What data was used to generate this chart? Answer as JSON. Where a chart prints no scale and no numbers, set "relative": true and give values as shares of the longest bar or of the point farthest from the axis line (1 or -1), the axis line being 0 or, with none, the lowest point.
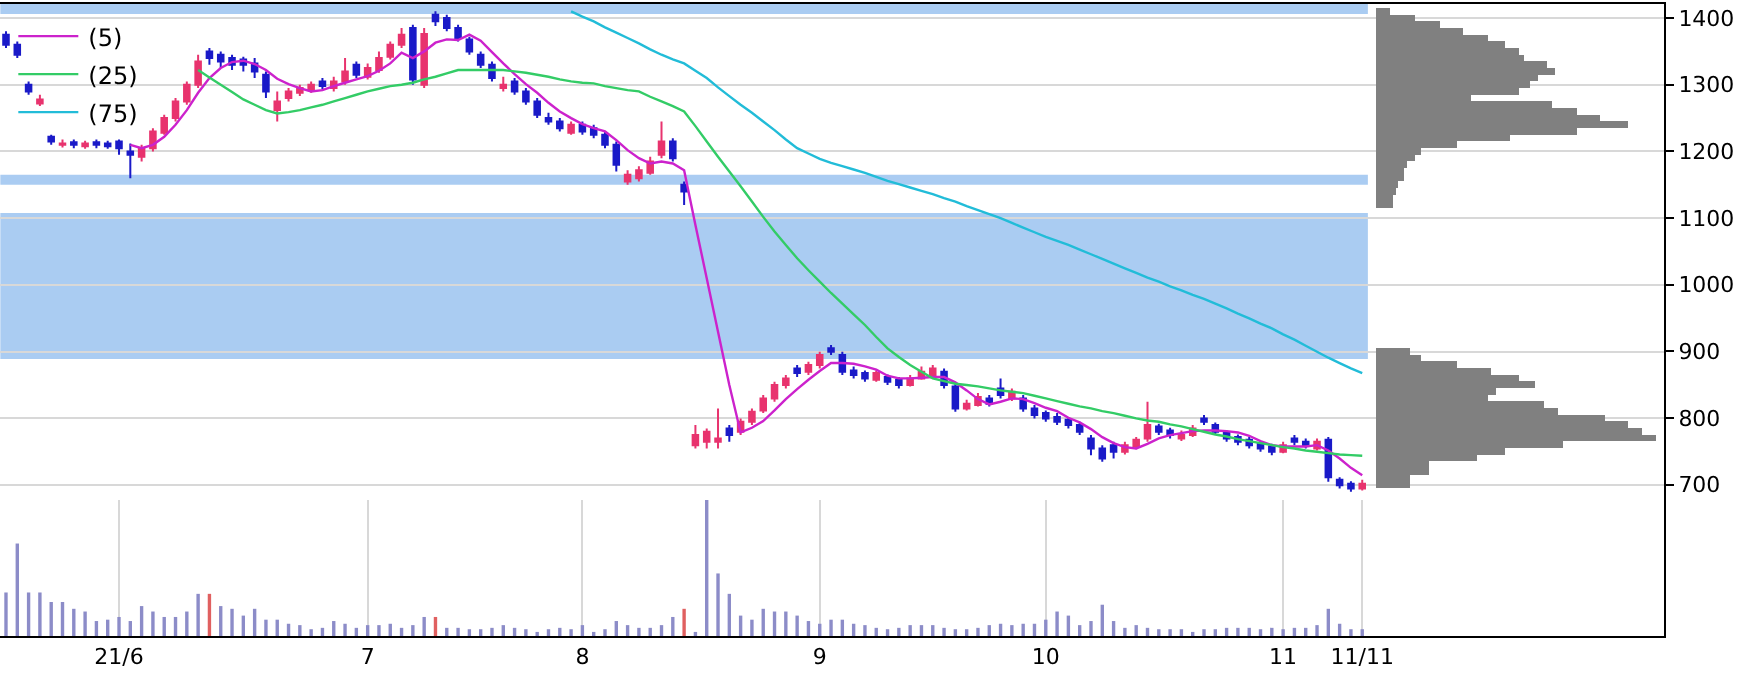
{
  "chart_data": [
    {
      "type": "candlestick",
      "tick_labels": false,
      "categories": [
        null,
        null,
        null,
        null,
        null,
        null,
        null,
        null,
        null,
        null,
        null,
        null,
        null,
        null,
        null,
        null,
        null,
        null,
        null,
        null,
        null,
        null,
        null,
        null,
        null,
        null,
        null,
        null,
        null,
        null,
        null,
        null,
        null,
        null,
        null,
        null,
        null,
        null,
        null,
        null,
        null,
        null,
        null,
        null,
        null,
        null,
        null,
        null,
        null,
        null,
        null,
        null,
        null,
        null,
        null,
        null,
        null,
        null,
        null,
        null,
        null,
        null,
        null,
        null,
        null,
        null,
        null,
        null,
        null,
        null,
        null,
        null,
        null,
        null,
        null,
        null,
        null,
        null,
        null,
        null,
        null,
        null,
        null,
        null,
        null,
        null,
        null,
        null,
        null,
        null,
        null,
        null,
        null,
        null,
        null,
        null,
        null,
        null,
        null,
        null,
        null,
        null,
        null,
        null,
        null,
        null,
        null,
        null,
        null,
        null,
        null,
        null,
        null,
        null,
        null,
        null,
        null,
        null,
        null,
        null,
        null
      ],
      "ohlc": [
        [
          1375,
          1380,
          1355,
          1360
        ],
        [
          1360,
          1365,
          1340,
          1345
        ],
        [
          1300,
          1305,
          1285,
          1290
        ],
        [
          1272,
          1285,
          1268,
          1278
        ],
        [
          1222,
          1225,
          1210,
          1215
        ],
        [
          1210,
          1218,
          1206,
          1212
        ],
        [
          1214,
          1218,
          1205,
          1210
        ],
        [
          1208,
          1216,
          1204,
          1212
        ],
        [
          1214,
          1218,
          1205,
          1210
        ],
        [
          1212,
          1216,
          1204,
          1208
        ],
        [
          1215,
          1218,
          1195,
          1205
        ],
        [
          1200,
          1212,
          1160,
          1195
        ],
        [
          1192,
          1210,
          1185,
          1205
        ],
        [
          1205,
          1235,
          1200,
          1230
        ],
        [
          1228,
          1255,
          1225,
          1250
        ],
        [
          1250,
          1280,
          1245,
          1275
        ],
        [
          1275,
          1305,
          1270,
          1300
        ],
        [
          1300,
          1345,
          1295,
          1335
        ],
        [
          1350,
          1355,
          1330,
          1340
        ],
        [
          1345,
          1350,
          1325,
          1335
        ],
        [
          1340,
          1345,
          1322,
          1330
        ],
        [
          1338,
          1342,
          1320,
          1330
        ],
        [
          1332,
          1340,
          1310,
          1320
        ],
        [
          1315,
          1320,
          1280,
          1290
        ],
        [
          1262,
          1290,
          1245,
          1275
        ],
        [
          1280,
          1295,
          1275,
          1290
        ],
        [
          1288,
          1300,
          1283,
          1295
        ],
        [
          1292,
          1305,
          1288,
          1300
        ],
        [
          1305,
          1310,
          1293,
          1298
        ],
        [
          1295,
          1312,
          1290,
          1305
        ],
        [
          1305,
          1340,
          1300,
          1320
        ],
        [
          1330,
          1335,
          1310,
          1315
        ],
        [
          1312,
          1332,
          1308,
          1325
        ],
        [
          1322,
          1350,
          1318,
          1340
        ],
        [
          1342,
          1365,
          1338,
          1360
        ],
        [
          1360,
          1385,
          1355,
          1375
        ],
        [
          1385,
          1390,
          1300,
          1308
        ],
        [
          1300,
          1385,
          1295,
          1376
        ],
        [
          1405,
          1410,
          1388,
          1395
        ],
        [
          1400,
          1405,
          1380,
          1385
        ],
        [
          1385,
          1390,
          1365,
          1370
        ],
        [
          1368,
          1372,
          1345,
          1350
        ],
        [
          1345,
          1350,
          1325,
          1330
        ],
        [
          1330,
          1335,
          1305,
          1310
        ],
        [
          1295,
          1312,
          1290,
          1300
        ],
        [
          1305,
          1310,
          1285,
          1290
        ],
        [
          1290,
          1295,
          1270,
          1275
        ],
        [
          1275,
          1280,
          1250,
          1255
        ],
        [
          1250,
          1258,
          1240,
          1245
        ],
        [
          1245,
          1250,
          1230,
          1235
        ],
        [
          1228,
          1245,
          1225,
          1240
        ],
        [
          1240,
          1245,
          1225,
          1230
        ],
        [
          1235,
          1240,
          1220,
          1225
        ],
        [
          1225,
          1230,
          1205,
          1210
        ],
        [
          1210,
          1215,
          1170,
          1180
        ],
        [
          1155,
          1172,
          1150,
          1165
        ],
        [
          1160,
          1178,
          1155,
          1172
        ],
        [
          1168,
          1192,
          1165,
          1185
        ],
        [
          1195,
          1245,
          1190,
          1215
        ],
        [
          1215,
          1220,
          1185,
          1190
        ],
        [
          1150,
          1155,
          1120,
          1140
        ],
        [
          760,
          790,
          755,
          775
        ],
        [
          765,
          785,
          755,
          780
        ],
        [
          765,
          815,
          755,
          770
        ],
        [
          785,
          790,
          765,
          775
        ],
        [
          780,
          800,
          775,
          795
        ],
        [
          795,
          815,
          790,
          810
        ],
        [
          812,
          835,
          808,
          830
        ],
        [
          830,
          855,
          825,
          850
        ],
        [
          850,
          865,
          845,
          860
        ],
        [
          875,
          880,
          862,
          868
        ],
        [
          870,
          885,
          865,
          880
        ],
        [
          880,
          900,
          875,
          895
        ],
        [
          905,
          910,
          895,
          900
        ],
        [
          895,
          900,
          865,
          870
        ],
        [
          872,
          878,
          860,
          865
        ],
        [
          868,
          872,
          855,
          860
        ],
        [
          858,
          872,
          855,
          868
        ],
        [
          862,
          866,
          850,
          855
        ],
        [
          858,
          862,
          845,
          850
        ],
        [
          850,
          865,
          848,
          860
        ],
        [
          860,
          878,
          858,
          870
        ],
        [
          865,
          880,
          862,
          875
        ],
        [
          870,
          875,
          845,
          850
        ],
        [
          848,
          852,
          810,
          815
        ],
        [
          815,
          828,
          812,
          822
        ],
        [
          820,
          838,
          818,
          832
        ],
        [
          830,
          835,
          818,
          822
        ],
        [
          845,
          860,
          830,
          835
        ],
        [
          830,
          845,
          826,
          840
        ],
        [
          830,
          835,
          810,
          815
        ],
        [
          815,
          820,
          800,
          805
        ],
        [
          808,
          812,
          795,
          800
        ],
        [
          802,
          808,
          790,
          795
        ],
        [
          798,
          802,
          785,
          790
        ],
        [
          790,
          795,
          775,
          780
        ],
        [
          770,
          775,
          745,
          755
        ],
        [
          755,
          760,
          735,
          740
        ],
        [
          760,
          765,
          740,
          750
        ],
        [
          750,
          765,
          746,
          760
        ],
        [
          758,
          772,
          754,
          768
        ],
        [
          770,
          825,
          765,
          790
        ],
        [
          788,
          792,
          775,
          780
        ],
        [
          782,
          786,
          770,
          775
        ],
        [
          770,
          782,
          766,
          775
        ],
        [
          775,
          790,
          772,
          785
        ],
        [
          800,
          805,
          790,
          795
        ],
        [
          790,
          794,
          775,
          780
        ],
        [
          778,
          782,
          765,
          770
        ],
        [
          772,
          776,
          760,
          765
        ],
        [
          768,
          772,
          755,
          760
        ],
        [
          762,
          766,
          750,
          755
        ],
        [
          758,
          762,
          745,
          750
        ],
        [
          750,
          765,
          748,
          760
        ],
        [
          770,
          775,
          760,
          765
        ],
        [
          765,
          770,
          755,
          760
        ],
        [
          755,
          770,
          752,
          765
        ],
        [
          768,
          772,
          705,
          712
        ],
        [
          708,
          712,
          695,
          700
        ],
        [
          702,
          706,
          690,
          695
        ],
        [
          695,
          708,
          692,
          702
        ]
      ],
      "colors": [
        "#1a1ac8",
        "#1a1ac8",
        "#1a1ac8",
        "#e8336e",
        "#1a1ac8",
        "#e8336e",
        "#1a1ac8",
        "#e8336e",
        "#1a1ac8",
        "#1a1ac8",
        "#1a1ac8",
        "#1a1ac8",
        "#e8336e",
        "#e8336e",
        "#e8336e",
        "#e8336e",
        "#e8336e",
        "#e8336e",
        "#1a1ac8",
        "#1a1ac8",
        "#1a1ac8",
        "#1a1ac8",
        "#1a1ac8",
        "#1a1ac8",
        "#e8336e",
        "#e8336e",
        "#e8336e",
        "#e8336e",
        "#1a1ac8",
        "#e8336e",
        "#e8336e",
        "#1a1ac8",
        "#e8336e",
        "#e8336e",
        "#e8336e",
        "#e8336e",
        "#1a1ac8",
        "#e8336e",
        "#1a1ac8",
        "#1a1ac8",
        "#1a1ac8",
        "#1a1ac8",
        "#1a1ac8",
        "#1a1ac8",
        "#e8336e",
        "#1a1ac8",
        "#1a1ac8",
        "#1a1ac8",
        "#1a1ac8",
        "#1a1ac8",
        "#e8336e",
        "#1a1ac8",
        "#1a1ac8",
        "#1a1ac8",
        "#1a1ac8",
        "#e8336e",
        "#e8336e",
        "#e8336e",
        "#e8336e",
        "#1a1ac8",
        "#1a1ac8",
        "#e8336e",
        "#e8336e",
        "#e8336e",
        "#1a1ac8",
        "#e8336e",
        "#e8336e",
        "#e8336e",
        "#e8336e",
        "#e8336e",
        "#1a1ac8",
        "#e8336e",
        "#e8336e",
        "#1a1ac8",
        "#1a1ac8",
        "#1a1ac8",
        "#1a1ac8",
        "#e8336e",
        "#1a1ac8",
        "#1a1ac8",
        "#e8336e",
        "#e8336e",
        "#e8336e",
        "#1a1ac8",
        "#1a1ac8",
        "#e8336e",
        "#e8336e",
        "#1a1ac8",
        "#1a1ac8",
        "#e8336e",
        "#1a1ac8",
        "#1a1ac8",
        "#1a1ac8",
        "#1a1ac8",
        "#1a1ac8",
        "#1a1ac8",
        "#1a1ac8",
        "#1a1ac8",
        "#1a1ac8",
        "#e8336e",
        "#e8336e",
        "#e8336e",
        "#1a1ac8",
        "#1a1ac8",
        "#e8336e",
        "#e8336e",
        "#1a1ac8",
        "#1a1ac8",
        "#1a1ac8",
        "#1a1ac8",
        "#1a1ac8",
        "#1a1ac8",
        "#1a1ac8",
        "#e8336e",
        "#1a1ac8",
        "#1a1ac8",
        "#e8336e",
        "#1a1ac8",
        "#1a1ac8",
        "#1a1ac8",
        "#e8336e"
      ],
      "series": [
        {
          "type": "line",
          "name": "(5)",
          "color": "#cc22cc",
          "values": [
            null,
            null,
            null,
            null,
            null,
            null,
            null,
            null,
            null,
            null,
            null,
            1210,
            1205,
            1210,
            1222,
            1240,
            1262,
            1288,
            1310,
            1325,
            1334,
            1336,
            1331,
            1322,
            1309,
            1301,
            1295,
            1290,
            1292,
            1298,
            1303,
            1308,
            1313,
            1321,
            1332,
            1348,
            1340,
            1350,
            1363,
            1368,
            1367,
            1375,
            1366,
            1349,
            1332,
            1316,
            1301,
            1288,
            1273,
            1260,
            1250,
            1241,
            1235,
            1230,
            1217,
            1202,
            1190,
            1182,
            1185,
            1182,
            1172,
            1090,
            1010,
            930,
            850,
            779,
            786,
            796,
            812,
            829,
            844,
            858,
            871,
            883,
            883,
            882,
            878,
            873,
            864,
            860,
            860,
            861,
            862,
            862,
            854,
            842,
            829,
            821,
            825,
            830,
            829,
            823,
            816,
            811,
            801,
            794,
            784,
            772,
            763,
            757,
            755,
            762,
            770,
            775,
            778,
            781,
            782,
            782,
            781,
            779,
            774,
            766,
            760,
            758,
            758,
            758,
            760,
            752,
            740,
            726,
            715
          ]
        },
        {
          "type": "line",
          "name": "(25)",
          "color": "#33cc66",
          "values": [
            null,
            null,
            null,
            null,
            null,
            null,
            null,
            null,
            null,
            null,
            null,
            null,
            null,
            null,
            null,
            null,
            null,
            1322,
            1311,
            1300,
            1289,
            1278,
            1270,
            1262,
            1257,
            1259,
            1262,
            1266,
            1270,
            1275,
            1280,
            1285,
            1290,
            1294,
            1298,
            1300,
            1303,
            1308,
            1312,
            1317,
            1322,
            1322,
            1322,
            1322,
            1322,
            1320,
            1318,
            1315,
            1312,
            1308,
            1305,
            1303,
            1302,
            1298,
            1295,
            1292,
            1290,
            1282,
            1275,
            1268,
            1260,
            1238,
            1215,
            1192,
            1170,
            1148,
            1125,
            1102,
            1080,
            1060,
            1040,
            1022,
            1005,
            988,
            972,
            956,
            940,
            922,
            905,
            892,
            880,
            870,
            860,
            856,
            852,
            850,
            848,
            845,
            842,
            840,
            838,
            834,
            830,
            826,
            822,
            818,
            815,
            811,
            808,
            804,
            800,
            797,
            795,
            791,
            788,
            784,
            780,
            776,
            773,
            769,
            766,
            763,
            760,
            757,
            755,
            752,
            750,
            748,
            746,
            745,
            744
          ]
        },
        {
          "type": "line",
          "name": "(75)",
          "color": "#22bcd8",
          "values": [
            null,
            null,
            null,
            null,
            null,
            null,
            null,
            null,
            null,
            null,
            null,
            null,
            null,
            null,
            null,
            null,
            null,
            null,
            null,
            null,
            null,
            null,
            null,
            null,
            null,
            null,
            null,
            null,
            null,
            null,
            null,
            null,
            null,
            null,
            null,
            null,
            null,
            null,
            null,
            null,
            null,
            null,
            null,
            null,
            null,
            null,
            null,
            null,
            null,
            null,
            1410,
            1402,
            1395,
            1386,
            1378,
            1370,
            1362,
            1353,
            1345,
            1338,
            1332,
            1321,
            1310,
            1296,
            1283,
            1270,
            1258,
            1245,
            1232,
            1218,
            1205,
            1197,
            1189,
            1183,
            1178,
            1173,
            1168,
            1162,
            1156,
            1151,
            1146,
            1141,
            1136,
            1130,
            1125,
            1118,
            1112,
            1106,
            1100,
            1093,
            1086,
            1079,
            1072,
            1066,
            1060,
            1053,
            1046,
            1039,
            1032,
            1025,
            1018,
            1011,
            1005,
            998,
            992,
            985,
            979,
            972,
            965,
            957,
            950,
            942,
            935,
            926,
            918,
            909,
            900,
            891,
            883,
            875,
            868
          ]
        }
      ],
      "ylim": [
        474,
        1421
      ],
      "yticks": [
        700,
        800,
        900,
        1000,
        1100,
        1200,
        1300,
        1400
      ],
      "bands": [
        {
          "axis": "y",
          "from": 1406,
          "to": 1421,
          "color": "#aaccf2"
        },
        {
          "axis": "y",
          "from": 1150,
          "to": 1165,
          "color": "#aaccf2"
        },
        {
          "axis": "y",
          "from": 889,
          "to": 1108,
          "color": "#aaccf2"
        }
      ],
      "grid": "y",
      "legend": "top left"
    },
    {
      "type": "bar",
      "relative": true,
      "tick_labels": "x",
      "grid": "x",
      "categories": [
        null,
        null,
        null,
        null,
        null,
        null,
        null,
        null,
        null,
        null,
        "21/6",
        null,
        null,
        null,
        null,
        null,
        null,
        null,
        null,
        null,
        null,
        null,
        null,
        null,
        null,
        null,
        null,
        null,
        null,
        null,
        null,
        null,
        "7",
        null,
        null,
        null,
        null,
        null,
        null,
        null,
        null,
        null,
        null,
        null,
        null,
        null,
        null,
        null,
        null,
        null,
        null,
        "8",
        null,
        null,
        null,
        null,
        null,
        null,
        null,
        null,
        null,
        null,
        null,
        null,
        null,
        null,
        null,
        null,
        null,
        null,
        null,
        null,
        "9",
        null,
        null,
        null,
        null,
        null,
        null,
        null,
        null,
        null,
        null,
        null,
        null,
        null,
        null,
        null,
        null,
        null,
        null,
        null,
        "10",
        null,
        null,
        null,
        null,
        null,
        null,
        null,
        null,
        null,
        null,
        null,
        null,
        null,
        null,
        null,
        null,
        null,
        null,
        null,
        null,
        "11",
        null,
        null,
        null,
        null,
        null,
        null,
        "11/11"
      ],
      "series": [
        {
          "color": "#8c8cc8",
          "values": [
            0.32,
            0.68,
            0.32,
            0.32,
            0.25,
            0.25,
            0.2,
            0.18,
            0.11,
            0.12,
            0.14,
            0.11,
            0.22,
            0.18,
            0.14,
            0.14,
            0.18,
            0.31,
            null,
            0.22,
            0.2,
            0.15,
            0.2,
            0.12,
            0.12,
            0.09,
            0.08,
            0.05,
            0.06,
            0.11,
            0.09,
            0.06,
            0.08,
            0.08,
            0.09,
            0.06,
            0.08,
            0.14,
            null,
            0.06,
            0.06,
            0.05,
            0.05,
            0.06,
            0.08,
            0.06,
            0.05,
            0.03,
            0.05,
            0.06,
            0.05,
            0.08,
            0.03,
            0.05,
            0.11,
            0.08,
            0.06,
            0.06,
            0.08,
            0.14,
            null,
            0.03,
            1,
            0.46,
            0.31,
            0.15,
            0.12,
            0.2,
            0.18,
            0.18,
            0.15,
            0.11,
            0.09,
            0.12,
            0.12,
            0.09,
            0.08,
            0.06,
            0.05,
            0.06,
            0.08,
            0.08,
            0.08,
            0.06,
            0.05,
            0.05,
            0.06,
            0.08,
            0.09,
            0.08,
            0.09,
            0.09,
            0.12,
            0.18,
            0.15,
            0.08,
            0.11,
            0.23,
            0.11,
            0.06,
            0.08,
            0.06,
            0.05,
            0.05,
            0.05,
            0.03,
            0.05,
            0.05,
            0.06,
            0.06,
            0.06,
            0.05,
            0.06,
            0.05,
            0.06,
            0.06,
            0.08,
            0.2,
            0.09,
            0.05,
            0.05
          ]
        },
        {
          "color": "#e06060",
          "values": [
            null,
            null,
            null,
            null,
            null,
            null,
            null,
            null,
            null,
            null,
            null,
            null,
            null,
            null,
            null,
            null,
            null,
            null,
            0.31,
            null,
            null,
            null,
            null,
            null,
            null,
            null,
            null,
            null,
            null,
            null,
            null,
            null,
            null,
            null,
            null,
            null,
            null,
            null,
            0.14,
            null,
            null,
            null,
            null,
            null,
            null,
            null,
            null,
            null,
            null,
            null,
            null,
            null,
            null,
            null,
            null,
            null,
            null,
            null,
            null,
            null,
            0.2,
            null,
            null,
            null,
            null,
            null,
            null,
            null,
            null,
            null,
            null,
            null,
            null,
            null,
            null,
            null,
            null,
            null,
            null,
            null,
            null,
            null,
            null,
            null,
            null,
            null,
            null,
            null,
            null,
            null,
            null,
            null,
            null,
            null,
            null,
            null,
            null,
            null,
            null,
            null,
            null,
            null,
            null,
            null,
            null,
            null,
            null,
            null,
            null,
            null,
            null,
            null,
            null,
            null,
            null,
            null,
            null,
            null,
            null,
            null,
            null
          ]
        }
      ]
    },
    {
      "type": "bar",
      "orientation": "horizontal",
      "relative": true,
      "tick_labels": "y",
      "color": "#808080",
      "categories": [
        null,
        "1400",
        null,
        null,
        null,
        null,
        null,
        null,
        null,
        null,
        null,
        "1300",
        null,
        null,
        null,
        null,
        null,
        null,
        null,
        null,
        null,
        "1200",
        null,
        null,
        null,
        null,
        null,
        null,
        null,
        null,
        null,
        "1100",
        null,
        null,
        null,
        null,
        null,
        null,
        null,
        null,
        null,
        "1000",
        null,
        null,
        null,
        null,
        null,
        null,
        null,
        null,
        null,
        "900",
        null,
        null,
        null,
        null,
        null,
        null,
        null,
        null,
        null,
        "800",
        null,
        null,
        null,
        null,
        null,
        null,
        null,
        null,
        null,
        "700"
      ],
      "values": [
        0.05,
        0.14,
        0.23,
        0.31,
        0.4,
        0.46,
        0.51,
        0.53,
        0.61,
        0.64,
        0.58,
        0.55,
        0.51,
        0.34,
        0.63,
        0.72,
        0.8,
        0.9,
        0.72,
        0.48,
        0.29,
        0.16,
        0.14,
        0.11,
        0.1,
        0.1,
        0.08,
        0.07,
        0.06,
        0.06,
        0,
        0,
        0,
        0,
        0,
        0,
        0,
        0,
        0,
        0,
        0,
        0,
        0,
        0,
        0,
        0,
        0,
        0,
        0,
        0,
        0,
        0.12,
        0.16,
        0.29,
        0.41,
        0.51,
        0.57,
        0.43,
        0.4,
        0.6,
        0.65,
        0.82,
        0.9,
        0.95,
        1,
        0.67,
        0.46,
        0.36,
        0.19,
        0.19,
        0.12,
        0.12
      ]
    }
  ]
}
